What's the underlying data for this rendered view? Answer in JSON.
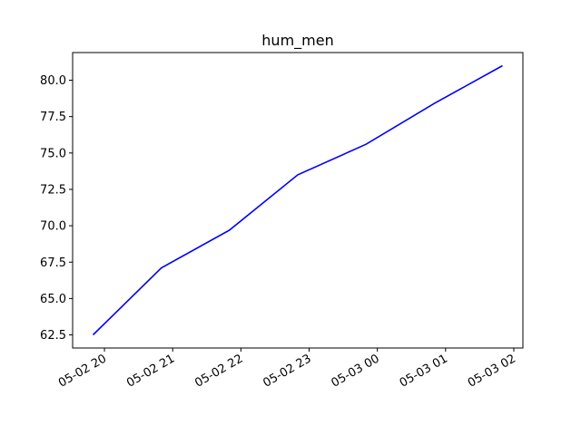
{
  "chart_data": {
    "type": "line",
    "title": "hum_men",
    "xlabel": "",
    "ylabel": "",
    "x": [
      "2024-05-02 19:50",
      "2024-05-02 20:50",
      "2024-05-02 21:50",
      "2024-05-02 22:50",
      "2024-05-02 23:50",
      "2024-05-03 00:50",
      "2024-05-03 01:50"
    ],
    "series": [
      {
        "values": [
          62.5,
          67.1,
          69.7,
          73.5,
          75.6,
          78.4,
          81.0
        ],
        "color": "#0000ff"
      }
    ],
    "xlim": [
      "2024-05-02 19:32",
      "2024-05-03 02:08"
    ],
    "ylim": [
      61.6,
      81.9
    ],
    "xticks": [
      {
        "value": "2024-05-02 20:00",
        "label": "05-02 20"
      },
      {
        "value": "2024-05-02 21:00",
        "label": "05-02 21"
      },
      {
        "value": "2024-05-02 22:00",
        "label": "05-02 22"
      },
      {
        "value": "2024-05-02 23:00",
        "label": "05-02 23"
      },
      {
        "value": "2024-05-03 00:00",
        "label": "05-03 00"
      },
      {
        "value": "2024-05-03 01:00",
        "label": "05-03 01"
      },
      {
        "value": "2024-05-03 02:00",
        "label": "05-03 02"
      }
    ],
    "yticks": [
      {
        "value": 62.5,
        "label": "62.5"
      },
      {
        "value": 65.0,
        "label": "65.0"
      },
      {
        "value": 67.5,
        "label": "67.5"
      },
      {
        "value": 70.0,
        "label": "70.0"
      },
      {
        "value": 72.5,
        "label": "72.5"
      },
      {
        "value": 75.0,
        "label": "75.0"
      },
      {
        "value": 77.5,
        "label": "77.5"
      },
      {
        "value": 80.0,
        "label": "80.0"
      }
    ],
    "grid": false,
    "legend": false
  }
}
